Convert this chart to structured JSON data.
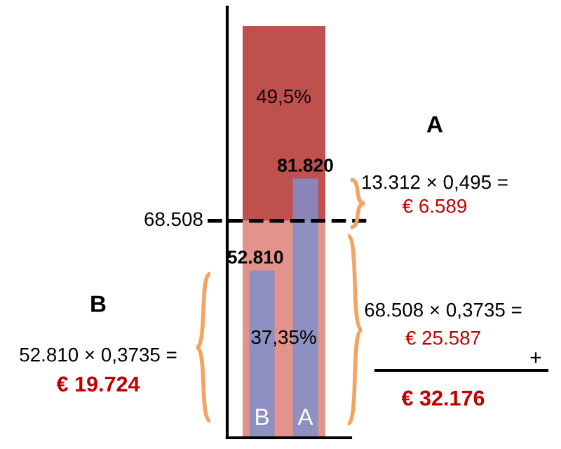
{
  "chart_data": {
    "type": "bar",
    "categories": [
      "B",
      "A"
    ],
    "values": [
      52810,
      81820
    ],
    "value_labels": [
      "52.810",
      "81.820"
    ],
    "color": "#7f8fca",
    "ylim": [
      0,
      136000
    ],
    "tick_labels": "x",
    "legend": false,
    "bands": [
      {
        "axis": "y",
        "from": 0,
        "to": 68508,
        "label": "37,35%",
        "color": "#e3928c"
      },
      {
        "axis": "y",
        "from": 68508,
        "to": 130000,
        "label": "49,5%",
        "color": "#c0504d"
      }
    ],
    "ref_lines": [
      {
        "axis": "y",
        "value": 68508,
        "label": "68.508",
        "color": "#000000",
        "line_style": "dashed"
      }
    ],
    "annotations": [
      "A",
      "13.312 × 0,495 =",
      "€ 6.589",
      "68.508 × 0,3735 =",
      "€ 25.587",
      "+",
      "€ 32.176",
      "B",
      "52.810 × 0,3735 =",
      "€ 19.724"
    ]
  }
}
